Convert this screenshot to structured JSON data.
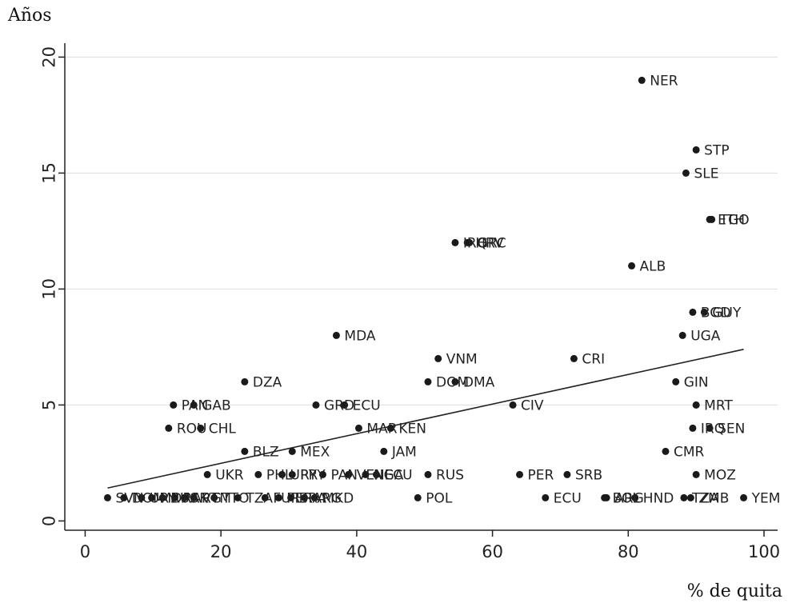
{
  "chart_data": {
    "type": "scatter",
    "title": "",
    "xlabel": "% de quita",
    "ylabel": "Años",
    "xlim": [
      -3,
      102
    ],
    "ylim": [
      -0.4,
      20.6
    ],
    "xticks": [
      0,
      20,
      40,
      60,
      80,
      100
    ],
    "yticks": [
      0,
      5,
      10,
      15,
      20
    ],
    "grid": "horizontal",
    "legend": "none",
    "colors": {
      "points": "#1a1a1a",
      "fit_line": "#222222",
      "grid": "#dddddd"
    },
    "points": [
      {
        "label": "NER",
        "x": 82,
        "y": 19
      },
      {
        "label": "STP",
        "x": 90,
        "y": 16
      },
      {
        "label": "SLE",
        "x": 88.5,
        "y": 15
      },
      {
        "label": "ETH",
        "x": 92,
        "y": 13
      },
      {
        "label": "TGO",
        "x": 92.3,
        "y": 13
      },
      {
        "label": "IRQ",
        "x": 54.5,
        "y": 12
      },
      {
        "label": "HRV",
        "x": 56.3,
        "y": 12
      },
      {
        "label": "GRC",
        "x": 56.6,
        "y": 12
      },
      {
        "label": "ALB",
        "x": 80.5,
        "y": 11
      },
      {
        "label": "BGD",
        "x": 89.5,
        "y": 9
      },
      {
        "label": "GUY",
        "x": 91.2,
        "y": 9
      },
      {
        "label": "MDA",
        "x": 37,
        "y": 8
      },
      {
        "label": "UGA",
        "x": 88,
        "y": 8
      },
      {
        "label": "VNM",
        "x": 52,
        "y": 7
      },
      {
        "label": "CRI",
        "x": 72,
        "y": 7
      },
      {
        "label": "DZA",
        "x": 23.5,
        "y": 6
      },
      {
        "label": "DOM",
        "x": 50.5,
        "y": 6
      },
      {
        "label": "DMA",
        "x": 54.5,
        "y": 6
      },
      {
        "label": "GIN",
        "x": 87,
        "y": 6
      },
      {
        "label": "PAN",
        "x": 13,
        "y": 5
      },
      {
        "label": "GAB",
        "x": 16,
        "y": 5
      },
      {
        "label": "GRD",
        "x": 34,
        "y": 5
      },
      {
        "label": "ECU",
        "x": 38.2,
        "y": 5
      },
      {
        "label": "CIV",
        "x": 63,
        "y": 5
      },
      {
        "label": "MRT",
        "x": 90,
        "y": 5
      },
      {
        "label": "ROU",
        "x": 12.3,
        "y": 4
      },
      {
        "label": "CHL",
        "x": 17,
        "y": 4
      },
      {
        "label": "MAR",
        "x": 40.3,
        "y": 4
      },
      {
        "label": "KEN",
        "x": 45,
        "y": 4
      },
      {
        "label": "IRQ",
        "x": 89.5,
        "y": 4
      },
      {
        "label": "SEN",
        "x": 92,
        "y": 4
      },
      {
        "label": "BLZ",
        "x": 23.5,
        "y": 3
      },
      {
        "label": "MEX",
        "x": 30.5,
        "y": 3
      },
      {
        "label": "JAM",
        "x": 44,
        "y": 3
      },
      {
        "label": "CMR",
        "x": 85.5,
        "y": 3
      },
      {
        "label": "UKR",
        "x": 18,
        "y": 2
      },
      {
        "label": "PHL",
        "x": 25.5,
        "y": 2
      },
      {
        "label": "URY",
        "x": 29,
        "y": 2
      },
      {
        "label": "PRY",
        "x": 30.5,
        "y": 2
      },
      {
        "label": "PAN",
        "x": 35,
        "y": 2
      },
      {
        "label": "VEN",
        "x": 38.8,
        "y": 2
      },
      {
        "label": "NGA",
        "x": 41.3,
        "y": 2
      },
      {
        "label": "ECU",
        "x": 42.9,
        "y": 2
      },
      {
        "label": "RUS",
        "x": 50.5,
        "y": 2
      },
      {
        "label": "PER",
        "x": 64,
        "y": 2
      },
      {
        "label": "SRB",
        "x": 71,
        "y": 2
      },
      {
        "label": "MOZ",
        "x": 90,
        "y": 2
      },
      {
        "label": "SVN",
        "x": 3.3,
        "y": 1
      },
      {
        "label": "DOM",
        "x": 5.7,
        "y": 1
      },
      {
        "label": "URY",
        "x": 8.3,
        "y": 1
      },
      {
        "label": "MDA",
        "x": 9.8,
        "y": 1
      },
      {
        "label": "RUS",
        "x": 11.4,
        "y": 1
      },
      {
        "label": "PAK",
        "x": 13.2,
        "y": 1
      },
      {
        "label": "ARG",
        "x": 14.6,
        "y": 1
      },
      {
        "label": "VTM",
        "x": 16,
        "y": 1
      },
      {
        "label": "TTO",
        "x": 19,
        "y": 1
      },
      {
        "label": "TZA",
        "x": 22.5,
        "y": 1
      },
      {
        "label": "FUR",
        "x": 26.5,
        "y": 1
      },
      {
        "label": "PER",
        "x": 28.5,
        "y": 1
      },
      {
        "label": "BRA",
        "x": 30.3,
        "y": 1
      },
      {
        "label": "ARG",
        "x": 32.3,
        "y": 1
      },
      {
        "label": "MKD",
        "x": 33.8,
        "y": 1
      },
      {
        "label": "POL",
        "x": 49,
        "y": 1
      },
      {
        "label": "ECU",
        "x": 67.8,
        "y": 1
      },
      {
        "label": "BOL",
        "x": 76.5,
        "y": 1
      },
      {
        "label": "ARG",
        "x": 76.8,
        "y": 1
      },
      {
        "label": "HND",
        "x": 81,
        "y": 1
      },
      {
        "label": "TZA",
        "x": 88.2,
        "y": 1
      },
      {
        "label": "ZMB",
        "x": 89.2,
        "y": 1
      },
      {
        "label": "YEM",
        "x": 97,
        "y": 1
      }
    ],
    "fit_line": {
      "x": [
        3.3,
        97
      ],
      "y": [
        1.42,
        7.4
      ]
    }
  }
}
